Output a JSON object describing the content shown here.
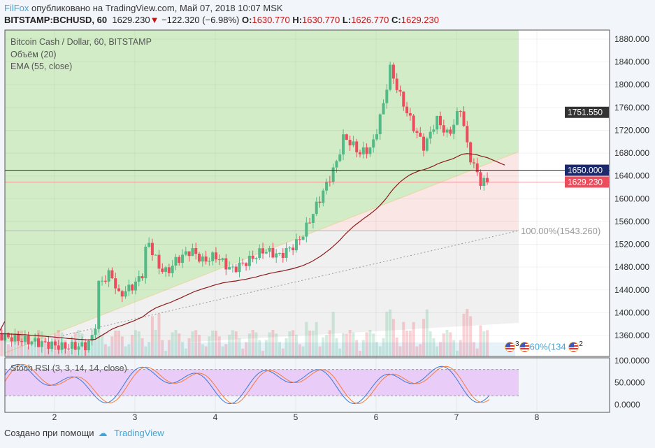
{
  "header": {
    "user": "FilFox",
    "published": "опубликовано на TradingView.com, Май 07, 2018 10:07 MSK"
  },
  "quote": {
    "symbol": "BITSTAMP:BCHUSD, 60",
    "last": "1629.230",
    "change": "−122.320 (−6.98%)",
    "o_label": "O:",
    "o": "1630.770",
    "h_label": "H:",
    "h": "1630.770",
    "l_label": "L:",
    "l": "1626.770",
    "c_label": "C:",
    "c": "1629.230"
  },
  "legend": {
    "title": "Bitcoin Cash / Dollar, 60, BITSTAMP",
    "volume": "Объём (20)",
    "ema": "EMA (55, close)",
    "stoch": "Stoch RSI (3, 3, 14, 14, close)"
  },
  "footer": {
    "created": "Создано при помощи",
    "brand": "TradingView"
  },
  "fib_label": "100.00%(1543.260)",
  "events_text": {
    "a": "3",
    "b": "2",
    "c": "60%(134"
  },
  "colors": {
    "up": "#53b987",
    "down": "#eb4d5c",
    "ema": "#8b1a1a",
    "navy": "#1c2a6b",
    "green_zone": "#d3ecc8",
    "pink_zone": "#fbe6e6",
    "gray_zone": "#f0f0f0",
    "stoch_band": "#e9cdf8"
  },
  "chart_data": {
    "type": "candlestick",
    "x_ticks": [
      "2",
      "3",
      "4",
      "5",
      "6",
      "7",
      "8"
    ],
    "y_ticks": [
      "1880.000",
      "1840.000",
      "1800.000",
      "1760.000",
      "1720.000",
      "1680.000",
      "1640.000",
      "1600.000",
      "1560.000",
      "1520.000",
      "1480.000",
      "1440.000",
      "1400.000",
      "1360.000"
    ],
    "ylim": [
      1330,
      1895
    ],
    "price_labels": [
      {
        "text": "1751.550",
        "price": 1751.55,
        "color": "#333333"
      },
      {
        "text": "1650.000",
        "price": 1650,
        "color": "#1c2a6b"
      },
      {
        "text": "1629.230",
        "price": 1629.23,
        "color": "#eb4d5c"
      }
    ],
    "close_path": [
      [
        1.3,
        1360
      ],
      [
        1.9,
        1345
      ],
      [
        2.1,
        1340
      ],
      [
        2.4,
        1342
      ],
      [
        2.5,
        1365
      ],
      [
        2.55,
        1450
      ],
      [
        2.7,
        1470
      ],
      [
        2.8,
        1430
      ],
      [
        3.0,
        1450
      ],
      [
        3.1,
        1470
      ],
      [
        3.15,
        1530
      ],
      [
        3.3,
        1480
      ],
      [
        3.4,
        1470
      ],
      [
        3.5,
        1490
      ],
      [
        3.7,
        1510
      ],
      [
        3.85,
        1490
      ],
      [
        4.0,
        1500
      ],
      [
        4.2,
        1475
      ],
      [
        4.4,
        1490
      ],
      [
        4.6,
        1510
      ],
      [
        4.8,
        1500
      ],
      [
        5.0,
        1520
      ],
      [
        5.1,
        1540
      ],
      [
        5.3,
        1600
      ],
      [
        5.5,
        1660
      ],
      [
        5.6,
        1710
      ],
      [
        5.8,
        1680
      ],
      [
        5.95,
        1690
      ],
      [
        6.1,
        1770
      ],
      [
        6.17,
        1830
      ],
      [
        6.3,
        1780
      ],
      [
        6.45,
        1730
      ],
      [
        6.6,
        1690
      ],
      [
        6.75,
        1740
      ],
      [
        6.9,
        1710
      ],
      [
        7.05,
        1760
      ],
      [
        7.15,
        1680
      ],
      [
        7.3,
        1630
      ],
      [
        7.4,
        1629.23
      ]
    ],
    "stoch_ticks": [
      "100.0000",
      "50.0000",
      "0.0000"
    ],
    "stoch_band": [
      20,
      80
    ]
  }
}
